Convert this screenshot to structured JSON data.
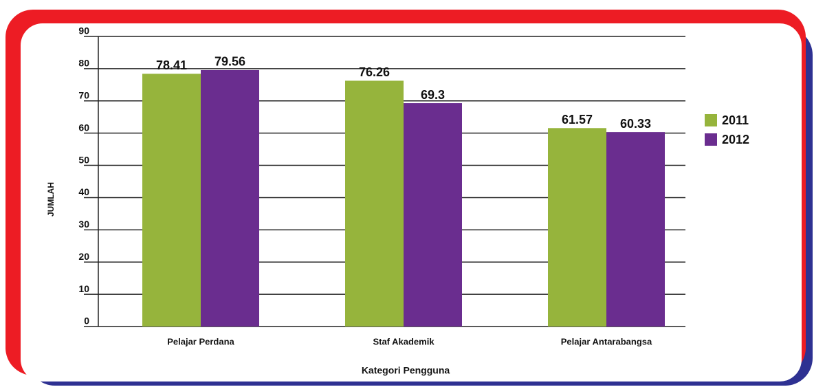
{
  "chart_data": {
    "type": "bar",
    "categories": [
      "Pelajar Perdana",
      "Staf Akademik",
      "Pelajar Antarabangsa"
    ],
    "series": [
      {
        "name": "2011",
        "color": "#96b43c",
        "values": [
          78.41,
          76.26,
          61.57
        ]
      },
      {
        "name": "2012",
        "color": "#6a2d8f",
        "values": [
          79.56,
          69.3,
          60.33
        ]
      }
    ],
    "x_label": "Kategori Pengguna",
    "y_label": "JUMLAH",
    "ylim": [
      0,
      90
    ],
    "yticks": [
      0,
      10,
      20,
      30,
      40,
      50,
      60,
      70,
      80,
      90
    ],
    "grid": true,
    "legend": "right"
  }
}
